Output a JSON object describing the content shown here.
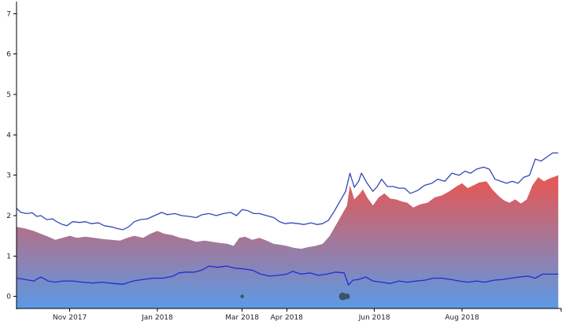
{
  "chart_data": {
    "type": "area",
    "title": "",
    "xlabel": "",
    "ylabel": "",
    "x_range": [
      "2017-09-25",
      "2018-10-09"
    ],
    "y_range": [
      -0.3,
      7.3
    ],
    "x_ticks": [
      {
        "date": "2017-11-01",
        "label": "Nov 2017"
      },
      {
        "date": "2018-01-01",
        "label": "Jan 2018"
      },
      {
        "date": "2018-03-01",
        "label": "Mar 2018"
      },
      {
        "date": "2018-04-01",
        "label": "Apr 2018"
      },
      {
        "date": "2018-06-01",
        "label": "Jun 2018"
      },
      {
        "date": "2018-08-01",
        "label": "Aug 2018"
      }
    ],
    "y_ticks": [
      0,
      1,
      2,
      3,
      4,
      5,
      6,
      7
    ],
    "grid": false,
    "colors": {
      "area_top": "#e05a5a",
      "area_bottom": "#5b9ae6",
      "line": "#3347b8",
      "lower_line": "#1a2fd6",
      "dots": "#3d5468",
      "axis": "#000000"
    },
    "series": [
      {
        "role": "upper-line",
        "points": [
          [
            "2017-09-25",
            2.18
          ],
          [
            "2017-09-28",
            2.08
          ],
          [
            "2017-10-02",
            2.05
          ],
          [
            "2017-10-06",
            2.07
          ],
          [
            "2017-10-09",
            1.98
          ],
          [
            "2017-10-12",
            2.0
          ],
          [
            "2017-10-16",
            1.9
          ],
          [
            "2017-10-20",
            1.92
          ],
          [
            "2017-10-23",
            1.85
          ],
          [
            "2017-10-27",
            1.78
          ],
          [
            "2017-10-30",
            1.75
          ],
          [
            "2017-11-03",
            1.85
          ],
          [
            "2017-11-08",
            1.83
          ],
          [
            "2017-11-12",
            1.85
          ],
          [
            "2017-11-16",
            1.8
          ],
          [
            "2017-11-21",
            1.82
          ],
          [
            "2017-11-25",
            1.75
          ],
          [
            "2017-11-30",
            1.72
          ],
          [
            "2017-12-04",
            1.68
          ],
          [
            "2017-12-08",
            1.65
          ],
          [
            "2017-12-12",
            1.72
          ],
          [
            "2017-12-16",
            1.85
          ],
          [
            "2017-12-20",
            1.9
          ],
          [
            "2017-12-25",
            1.92
          ],
          [
            "2017-12-30",
            2.0
          ],
          [
            "2018-01-04",
            2.08
          ],
          [
            "2018-01-08",
            2.02
          ],
          [
            "2018-01-13",
            2.05
          ],
          [
            "2018-01-18",
            2.0
          ],
          [
            "2018-01-23",
            1.98
          ],
          [
            "2018-01-28",
            1.95
          ],
          [
            "2018-02-01",
            2.02
          ],
          [
            "2018-02-06",
            2.05
          ],
          [
            "2018-02-11",
            2.0
          ],
          [
            "2018-02-16",
            2.05
          ],
          [
            "2018-02-21",
            2.08
          ],
          [
            "2018-02-25",
            2.0
          ],
          [
            "2018-03-01",
            2.15
          ],
          [
            "2018-03-05",
            2.12
          ],
          [
            "2018-03-09",
            2.05
          ],
          [
            "2018-03-13",
            2.05
          ],
          [
            "2018-03-18",
            2.0
          ],
          [
            "2018-03-23",
            1.95
          ],
          [
            "2018-03-27",
            1.85
          ],
          [
            "2018-03-31",
            1.8
          ],
          [
            "2018-04-04",
            1.82
          ],
          [
            "2018-04-09",
            1.8
          ],
          [
            "2018-04-13",
            1.78
          ],
          [
            "2018-04-18",
            1.82
          ],
          [
            "2018-04-22",
            1.78
          ],
          [
            "2018-04-26",
            1.8
          ],
          [
            "2018-04-30",
            1.88
          ],
          [
            "2018-05-04",
            2.1
          ],
          [
            "2018-05-08",
            2.35
          ],
          [
            "2018-05-12",
            2.6
          ],
          [
            "2018-05-15",
            3.05
          ],
          [
            "2018-05-18",
            2.7
          ],
          [
            "2018-05-21",
            2.85
          ],
          [
            "2018-05-23",
            3.05
          ],
          [
            "2018-05-27",
            2.8
          ],
          [
            "2018-05-31",
            2.6
          ],
          [
            "2018-06-03",
            2.72
          ],
          [
            "2018-06-06",
            2.9
          ],
          [
            "2018-06-10",
            2.72
          ],
          [
            "2018-06-14",
            2.72
          ],
          [
            "2018-06-18",
            2.68
          ],
          [
            "2018-06-22",
            2.68
          ],
          [
            "2018-06-26",
            2.55
          ],
          [
            "2018-07-01",
            2.62
          ],
          [
            "2018-07-06",
            2.75
          ],
          [
            "2018-07-11",
            2.8
          ],
          [
            "2018-07-15",
            2.9
          ],
          [
            "2018-07-20",
            2.85
          ],
          [
            "2018-07-25",
            3.05
          ],
          [
            "2018-07-30",
            3.0
          ],
          [
            "2018-08-03",
            3.1
          ],
          [
            "2018-08-07",
            3.05
          ],
          [
            "2018-08-11",
            3.15
          ],
          [
            "2018-08-16",
            3.2
          ],
          [
            "2018-08-20",
            3.15
          ],
          [
            "2018-08-24",
            2.9
          ],
          [
            "2018-08-28",
            2.85
          ],
          [
            "2018-09-01",
            2.8
          ],
          [
            "2018-09-05",
            2.85
          ],
          [
            "2018-09-09",
            2.8
          ],
          [
            "2018-09-13",
            2.95
          ],
          [
            "2018-09-17",
            3.0
          ],
          [
            "2018-09-21",
            3.4
          ],
          [
            "2018-09-25",
            3.35
          ],
          [
            "2018-09-29",
            3.45
          ],
          [
            "2018-10-03",
            3.55
          ],
          [
            "2018-10-07",
            3.55
          ]
        ]
      },
      {
        "role": "area",
        "points": [
          [
            "2017-09-25",
            1.72
          ],
          [
            "2017-10-01",
            1.68
          ],
          [
            "2017-10-07",
            1.62
          ],
          [
            "2017-10-12",
            1.55
          ],
          [
            "2017-10-17",
            1.48
          ],
          [
            "2017-10-22",
            1.4
          ],
          [
            "2017-10-27",
            1.45
          ],
          [
            "2017-11-01",
            1.5
          ],
          [
            "2017-11-06",
            1.45
          ],
          [
            "2017-11-12",
            1.48
          ],
          [
            "2017-11-18",
            1.45
          ],
          [
            "2017-11-24",
            1.42
          ],
          [
            "2017-11-30",
            1.4
          ],
          [
            "2017-12-06",
            1.38
          ],
          [
            "2017-12-11",
            1.45
          ],
          [
            "2017-12-16",
            1.5
          ],
          [
            "2017-12-22",
            1.45
          ],
          [
            "2017-12-27",
            1.55
          ],
          [
            "2018-01-01",
            1.62
          ],
          [
            "2018-01-06",
            1.55
          ],
          [
            "2018-01-11",
            1.52
          ],
          [
            "2018-01-17",
            1.45
          ],
          [
            "2018-01-22",
            1.42
          ],
          [
            "2018-01-28",
            1.35
          ],
          [
            "2018-02-03",
            1.38
          ],
          [
            "2018-02-08",
            1.35
          ],
          [
            "2018-02-14",
            1.32
          ],
          [
            "2018-02-19",
            1.3
          ],
          [
            "2018-02-23",
            1.25
          ],
          [
            "2018-02-27",
            1.45
          ],
          [
            "2018-03-03",
            1.48
          ],
          [
            "2018-03-08",
            1.4
          ],
          [
            "2018-03-13",
            1.45
          ],
          [
            "2018-03-18",
            1.38
          ],
          [
            "2018-03-23",
            1.3
          ],
          [
            "2018-03-27",
            1.28
          ],
          [
            "2018-04-01",
            1.25
          ],
          [
            "2018-04-06",
            1.2
          ],
          [
            "2018-04-11",
            1.18
          ],
          [
            "2018-04-16",
            1.22
          ],
          [
            "2018-04-21",
            1.25
          ],
          [
            "2018-04-26",
            1.3
          ],
          [
            "2018-05-01",
            1.5
          ],
          [
            "2018-05-05",
            1.75
          ],
          [
            "2018-05-09",
            2.0
          ],
          [
            "2018-05-13",
            2.25
          ],
          [
            "2018-05-15",
            2.75
          ],
          [
            "2018-05-18",
            2.4
          ],
          [
            "2018-05-22",
            2.55
          ],
          [
            "2018-05-24",
            2.65
          ],
          [
            "2018-05-27",
            2.45
          ],
          [
            "2018-05-31",
            2.25
          ],
          [
            "2018-06-04",
            2.45
          ],
          [
            "2018-06-08",
            2.55
          ],
          [
            "2018-06-12",
            2.42
          ],
          [
            "2018-06-16",
            2.4
          ],
          [
            "2018-06-20",
            2.35
          ],
          [
            "2018-06-24",
            2.32
          ],
          [
            "2018-06-28",
            2.2
          ],
          [
            "2018-07-03",
            2.28
          ],
          [
            "2018-07-08",
            2.32
          ],
          [
            "2018-07-13",
            2.45
          ],
          [
            "2018-07-18",
            2.5
          ],
          [
            "2018-07-23",
            2.6
          ],
          [
            "2018-07-28",
            2.72
          ],
          [
            "2018-08-01",
            2.8
          ],
          [
            "2018-08-05",
            2.68
          ],
          [
            "2018-08-09",
            2.75
          ],
          [
            "2018-08-13",
            2.82
          ],
          [
            "2018-08-18",
            2.85
          ],
          [
            "2018-08-22",
            2.65
          ],
          [
            "2018-08-26",
            2.5
          ],
          [
            "2018-08-30",
            2.38
          ],
          [
            "2018-09-03",
            2.32
          ],
          [
            "2018-09-07",
            2.4
          ],
          [
            "2018-09-11",
            2.3
          ],
          [
            "2018-09-15",
            2.4
          ],
          [
            "2018-09-19",
            2.75
          ],
          [
            "2018-09-23",
            2.95
          ],
          [
            "2018-09-27",
            2.85
          ],
          [
            "2018-10-01",
            2.92
          ],
          [
            "2018-10-07",
            3.0
          ]
        ]
      },
      {
        "role": "lower-line",
        "points": [
          [
            "2017-09-25",
            0.45
          ],
          [
            "2017-10-01",
            0.42
          ],
          [
            "2017-10-07",
            0.38
          ],
          [
            "2017-10-12",
            0.48
          ],
          [
            "2017-10-17",
            0.38
          ],
          [
            "2017-10-22",
            0.35
          ],
          [
            "2017-10-27",
            0.38
          ],
          [
            "2017-11-03",
            0.38
          ],
          [
            "2017-11-10",
            0.35
          ],
          [
            "2017-11-17",
            0.33
          ],
          [
            "2017-11-24",
            0.35
          ],
          [
            "2017-12-01",
            0.32
          ],
          [
            "2017-12-08",
            0.3
          ],
          [
            "2017-12-15",
            0.38
          ],
          [
            "2017-12-22",
            0.42
          ],
          [
            "2017-12-29",
            0.45
          ],
          [
            "2018-01-05",
            0.45
          ],
          [
            "2018-01-12",
            0.5
          ],
          [
            "2018-01-16",
            0.58
          ],
          [
            "2018-01-21",
            0.6
          ],
          [
            "2018-01-27",
            0.6
          ],
          [
            "2018-02-01",
            0.65
          ],
          [
            "2018-02-06",
            0.75
          ],
          [
            "2018-02-12",
            0.72
          ],
          [
            "2018-02-18",
            0.75
          ],
          [
            "2018-02-24",
            0.7
          ],
          [
            "2018-03-02",
            0.68
          ],
          [
            "2018-03-08",
            0.65
          ],
          [
            "2018-03-14",
            0.55
          ],
          [
            "2018-03-20",
            0.5
          ],
          [
            "2018-03-26",
            0.52
          ],
          [
            "2018-04-01",
            0.55
          ],
          [
            "2018-04-05",
            0.62
          ],
          [
            "2018-04-11",
            0.55
          ],
          [
            "2018-04-17",
            0.58
          ],
          [
            "2018-04-23",
            0.52
          ],
          [
            "2018-04-29",
            0.55
          ],
          [
            "2018-05-05",
            0.6
          ],
          [
            "2018-05-11",
            0.58
          ],
          [
            "2018-05-14",
            0.28
          ],
          [
            "2018-05-17",
            0.4
          ],
          [
            "2018-05-21",
            0.42
          ],
          [
            "2018-05-26",
            0.48
          ],
          [
            "2018-05-31",
            0.38
          ],
          [
            "2018-06-06",
            0.35
          ],
          [
            "2018-06-12",
            0.32
          ],
          [
            "2018-06-18",
            0.38
          ],
          [
            "2018-06-24",
            0.35
          ],
          [
            "2018-06-30",
            0.38
          ],
          [
            "2018-07-06",
            0.4
          ],
          [
            "2018-07-12",
            0.45
          ],
          [
            "2018-07-18",
            0.45
          ],
          [
            "2018-07-24",
            0.42
          ],
          [
            "2018-07-30",
            0.38
          ],
          [
            "2018-08-05",
            0.35
          ],
          [
            "2018-08-11",
            0.38
          ],
          [
            "2018-08-17",
            0.35
          ],
          [
            "2018-08-23",
            0.4
          ],
          [
            "2018-08-29",
            0.42
          ],
          [
            "2018-09-04",
            0.45
          ],
          [
            "2018-09-10",
            0.48
          ],
          [
            "2018-09-16",
            0.5
          ],
          [
            "2018-09-21",
            0.45
          ],
          [
            "2018-09-26",
            0.55
          ],
          [
            "2018-10-02",
            0.55
          ],
          [
            "2018-10-07",
            0.55
          ]
        ]
      },
      {
        "role": "dots",
        "points": [
          {
            "x": "2018-03-01",
            "y": 0.0,
            "size": 1
          },
          {
            "x": "2018-05-10",
            "y": 0.0,
            "size": 3
          },
          {
            "x": "2018-05-13",
            "y": 0.0,
            "size": 2
          }
        ]
      }
    ]
  }
}
